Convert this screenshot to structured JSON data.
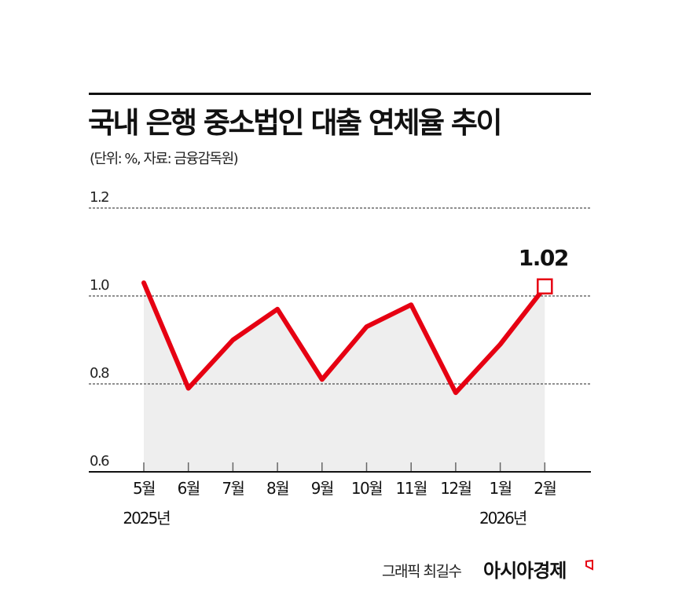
{
  "header": {
    "title": "국내 은행 중소법인 대출 연체율 추이",
    "subtitle": "(단위: %, 자료: 금융감독원)"
  },
  "chart_data": {
    "type": "line",
    "title": "국내 은행 중소법인 대출 연체율 추이",
    "subtitle": "(단위: %, 자료: 금융감독원)",
    "xlabel": "",
    "ylabel": "%",
    "categories": [
      "5월",
      "6월",
      "7월",
      "8월",
      "9월",
      "10월",
      "11월",
      "12월",
      "1월",
      "2월"
    ],
    "year_labels": [
      {
        "index": 0,
        "label": "2025년"
      },
      {
        "index": 8,
        "label": "2026년"
      }
    ],
    "series": [
      {
        "name": "중소법인 대출 연체율",
        "color": "#e60012",
        "values": [
          1.03,
          0.79,
          0.9,
          0.97,
          0.81,
          0.93,
          0.98,
          0.78,
          0.89,
          1.02
        ]
      }
    ],
    "yticks": [
      "0.6",
      "0.8",
      "1.0",
      "1.2"
    ],
    "ylim": [
      0.6,
      1.2
    ],
    "grid": true,
    "grid_style": "dotted",
    "area_fill": "#eeeeee",
    "annotations": [
      {
        "index": 9,
        "label": "1.02",
        "marker": "hollow-square"
      }
    ],
    "legend": "none"
  },
  "footer": {
    "credit": "그래픽 최길수",
    "brand": "아시아경제"
  },
  "colors": {
    "accent": "#e60012",
    "text": "#111111",
    "area": "#eeeeee"
  }
}
